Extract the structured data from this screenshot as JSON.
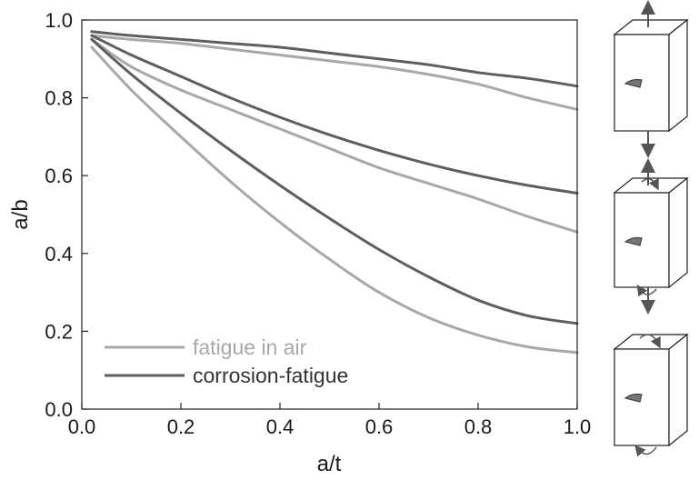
{
  "chart_data": {
    "type": "line",
    "xlabel": "a/t",
    "ylabel": "a/b",
    "xlim": [
      0.0,
      1.0
    ],
    "ylim": [
      0.0,
      1.0
    ],
    "xticks": [
      "0.0",
      "0.2",
      "0.4",
      "0.6",
      "0.8",
      "1.0"
    ],
    "yticks": [
      "0.0",
      "0.2",
      "0.4",
      "0.6",
      "0.8",
      "1.0"
    ],
    "grid": false,
    "legend_position": "bottom-left",
    "x": [
      0.02,
      0.1,
      0.2,
      0.3,
      0.4,
      0.5,
      0.6,
      0.7,
      0.8,
      0.9,
      1.0
    ],
    "series": [
      {
        "name": "fatigue in air",
        "color": "#a8a8a8",
        "values": [
          0.96,
          0.95,
          0.94,
          0.925,
          0.91,
          0.895,
          0.88,
          0.86,
          0.835,
          0.8,
          0.77
        ]
      },
      {
        "name": "corrosion-fatigue",
        "color": "#5e5e5e",
        "values": [
          0.97,
          0.96,
          0.95,
          0.94,
          0.93,
          0.915,
          0.9,
          0.885,
          0.865,
          0.85,
          0.83
        ]
      },
      {
        "name": "fatigue in air",
        "color": "#a8a8a8",
        "values": [
          0.95,
          0.88,
          0.82,
          0.77,
          0.72,
          0.67,
          0.62,
          0.58,
          0.54,
          0.495,
          0.455
        ]
      },
      {
        "name": "corrosion-fatigue",
        "color": "#5e5e5e",
        "values": [
          0.96,
          0.91,
          0.855,
          0.8,
          0.75,
          0.705,
          0.665,
          0.63,
          0.6,
          0.575,
          0.555
        ]
      },
      {
        "name": "fatigue in air",
        "color": "#a8a8a8",
        "values": [
          0.93,
          0.82,
          0.7,
          0.585,
          0.48,
          0.385,
          0.3,
          0.235,
          0.19,
          0.16,
          0.145
        ]
      },
      {
        "name": "corrosion-fatigue",
        "color": "#5e5e5e",
        "values": [
          0.95,
          0.86,
          0.76,
          0.665,
          0.575,
          0.49,
          0.41,
          0.34,
          0.28,
          0.24,
          0.22
        ]
      }
    ],
    "legend": [
      {
        "label": "fatigue in air",
        "color": "#a8a8a8"
      },
      {
        "label": "corrosion-fatigue",
        "color": "#5e5e5e"
      }
    ],
    "side_icons": [
      "tension-block-icon",
      "tension-bending-block-icon",
      "bending-block-icon"
    ]
  }
}
